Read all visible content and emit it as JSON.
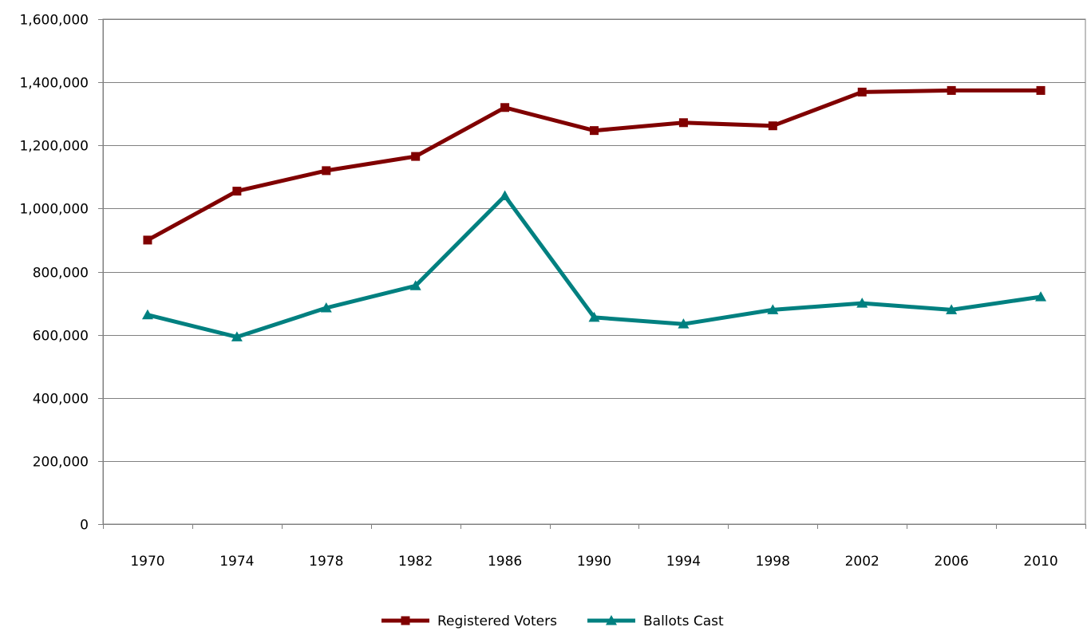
{
  "chart_data": {
    "type": "line",
    "title": "",
    "xlabel": "",
    "ylabel": "",
    "categories": [
      "1970",
      "1974",
      "1978",
      "1982",
      "1986",
      "1990",
      "1994",
      "1998",
      "2002",
      "2006",
      "2010"
    ],
    "ylim": [
      0,
      1600000
    ],
    "y_ticks": [
      0,
      200000,
      400000,
      600000,
      800000,
      1000000,
      1200000,
      1400000,
      1600000
    ],
    "y_tick_labels": [
      "0",
      "200,000",
      "400,000",
      "600,000",
      "800,000",
      "1,000,000",
      "1,200,000",
      "1,400,000",
      "1,600,000"
    ],
    "grid": "horizontal",
    "legend_position": "bottom",
    "series": [
      {
        "name": "Registered Voters",
        "color": "#800000",
        "marker": "square",
        "values": [
          900000,
          1055000,
          1120000,
          1165000,
          1320000,
          1247000,
          1272000,
          1262000,
          1369000,
          1374000,
          1374000
        ]
      },
      {
        "name": "Ballots Cast",
        "color": "#008080",
        "marker": "triangle",
        "values": [
          663000,
          593000,
          685000,
          755000,
          1040000,
          655000,
          634000,
          679000,
          700000,
          679000,
          720000
        ]
      }
    ]
  }
}
